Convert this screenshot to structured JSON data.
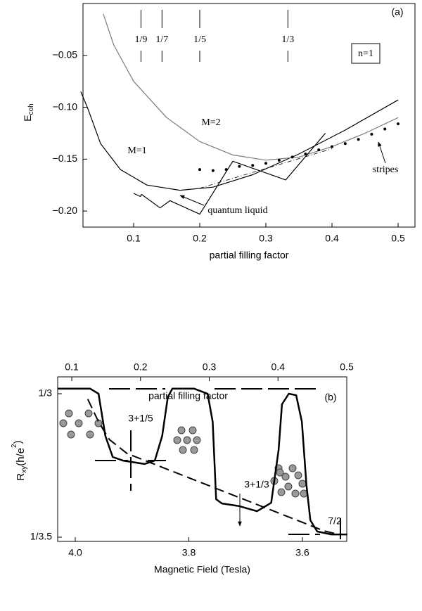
{
  "chart_data": [
    {
      "type": "line",
      "xlabel": "partial filling factor",
      "ylabel": "E",
      "ylabel_sub": "coh",
      "xlim": [
        0.0234,
        0.5255
      ],
      "ylim": [
        -0.2155,
        0
      ],
      "xticks": [
        0.1,
        0.2,
        0.3,
        0.4,
        0.5
      ],
      "yticks": [
        {
          "value": -0.05,
          "label": "−0.05"
        },
        {
          "value": -0.1,
          "label": "−0.10"
        },
        {
          "value": -0.15,
          "label": "−0.15"
        },
        {
          "value": -0.2,
          "label": "−0.20"
        }
      ],
      "markers": {
        "x": [
          0.1111,
          0.1429,
          0.2,
          0.3333
        ],
        "value_labels": [
          "1/9",
          "1/7",
          "1/5",
          "1/3"
        ]
      },
      "panel_label": "(a)",
      "box_label": "n=1",
      "series": [
        {
          "name": "M=1",
          "color": "#000000",
          "style": "solid",
          "x": [
            0.02,
            0.03,
            0.05,
            0.08,
            0.12,
            0.17,
            0.22,
            0.28,
            0.35,
            0.42,
            0.5
          ],
          "values": [
            -0.085,
            -0.1,
            -0.135,
            -0.16,
            -0.175,
            -0.18,
            -0.177,
            -0.165,
            -0.145,
            -0.122,
            -0.093
          ]
        },
        {
          "name": "M=2",
          "color": "#7a7a7a",
          "style": "solid",
          "x": [
            0.054,
            0.07,
            0.1,
            0.15,
            0.2,
            0.25,
            0.3,
            0.35,
            0.4,
            0.45,
            0.5
          ],
          "values": [
            -0.01,
            -0.04,
            -0.075,
            -0.11,
            -0.133,
            -0.146,
            -0.151,
            -0.148,
            -0.138,
            -0.125,
            -0.11
          ]
        },
        {
          "name": "quantum liquid",
          "color": "#000000",
          "style": "solid",
          "x": [
            0.1,
            0.11,
            0.112,
            0.14,
            0.155,
            0.2,
            0.25,
            0.33,
            0.39
          ],
          "values": [
            -0.183,
            -0.186,
            -0.184,
            -0.197,
            -0.19,
            -0.203,
            -0.152,
            -0.17,
            -0.125
          ]
        },
        {
          "color": "#000000",
          "style": "dashdot",
          "x": [
            0.2,
            0.4
          ],
          "values": [
            -0.178,
            -0.14
          ]
        },
        {
          "name": "stripes",
          "color": "#000000",
          "style": "dots",
          "x": [
            0.2,
            0.22,
            0.24,
            0.26,
            0.28,
            0.3,
            0.32,
            0.34,
            0.36,
            0.38,
            0.4,
            0.42,
            0.44,
            0.46,
            0.48,
            0.5
          ],
          "values": [
            -0.16,
            -0.161,
            -0.16,
            -0.157,
            -0.156,
            -0.154,
            -0.151,
            -0.148,
            -0.145,
            -0.141,
            -0.138,
            -0.135,
            -0.131,
            -0.126,
            -0.121,
            -0.116
          ]
        }
      ]
    },
    {
      "type": "line",
      "xlabel": "Magnetic Field (Tesla)",
      "x2label": "partial filling factor",
      "ylabel": [
        "R",
        "xy",
        "(h/e",
        "2",
        ")"
      ],
      "xlim": [
        4.031,
        3.522
      ],
      "x2lim": [
        0.0795,
        0.5
      ],
      "ylim": [
        0.2843,
        0.3389
      ],
      "xticks": [
        {
          "value": 4,
          "label": "4.0"
        },
        3.8,
        3.6
      ],
      "x2ticks": [
        0.1,
        0.2,
        0.3,
        0.4,
        0.5
      ],
      "yticks": [
        {
          "value": 0.3333,
          "label": "1/3"
        },
        {
          "value": 0.2857,
          "label": "1/3.5"
        }
      ],
      "panel_label": "(b)",
      "notes": [
        "3+1/5",
        "3+1/3",
        "7/2"
      ],
      "series": [
        {
          "color": "#000000",
          "style": "thick",
          "x": [
            4.031,
            3.974,
            3.959,
            3.947,
            3.934,
            3.916,
            3.878,
            3.86,
            3.847,
            3.837,
            3.829,
            3.791,
            3.767,
            3.758,
            3.752,
            3.742,
            3.711,
            3.68,
            3.655,
            3.642,
            3.636,
            3.624,
            3.611,
            3.601,
            3.593,
            3.586,
            3.574,
            3.549,
            3.521
          ],
          "values": [
            0.335,
            0.335,
            0.3333,
            0.3193,
            0.3123,
            0.3111,
            0.31,
            0.3111,
            0.3193,
            0.3322,
            0.335,
            0.335,
            0.3333,
            0.324,
            0.2983,
            0.2969,
            0.296,
            0.2943,
            0.2971,
            0.3146,
            0.3298,
            0.3333,
            0.3328,
            0.324,
            0.303,
            0.2913,
            0.2876,
            0.2866,
            0.2866
          ]
        },
        {
          "color": "#000000",
          "style": "dashed",
          "x": [
            3.978,
            3.959,
            3.94,
            3.909,
            3.562,
            3.537
          ],
          "values": [
            0.3315,
            0.324,
            0.3181,
            0.3135,
            0.2878,
            0.2866
          ]
        }
      ]
    }
  ]
}
